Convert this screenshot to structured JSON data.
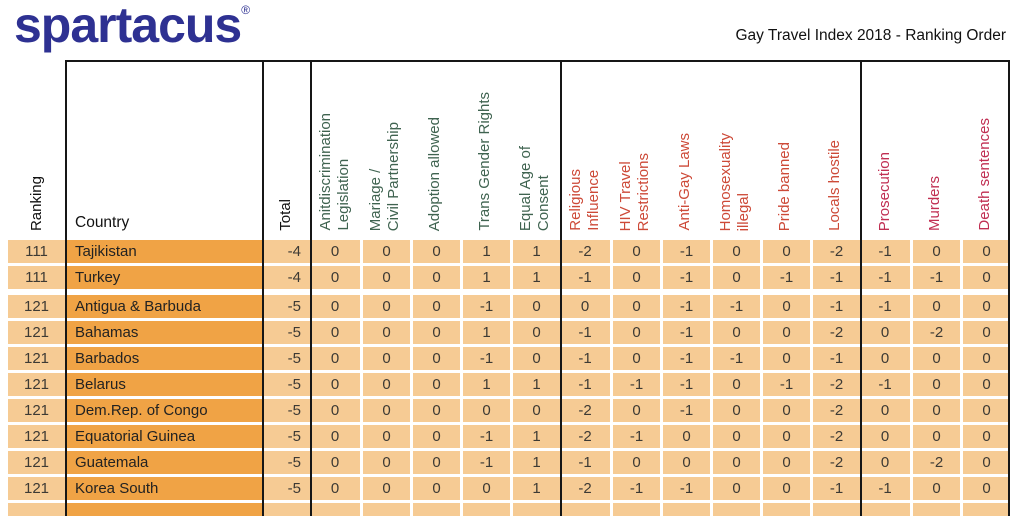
{
  "brand": {
    "logo_text": "spartacus",
    "registered_mark": "®"
  },
  "title": "Gay Travel Index 2018 - Ranking Order",
  "colors": {
    "logo_blue": "#2e3192",
    "positive_header": "#3f6350",
    "negative_header": "#cd4a38",
    "severe_header": "#c02e52",
    "row_light": "#f6cb94",
    "row_dark": "#f0a345",
    "grid_line": "#161616"
  },
  "table": {
    "corner_headers": {
      "ranking": "Ranking",
      "country": "Country",
      "total": "Total"
    },
    "column_groups": [
      {
        "id": "positive",
        "columns": [
          "Anitdiscrimination\nLegislation",
          "Mariage /\nCivil Partnership",
          "Adoption allowed",
          "Trans Gender Rights",
          "Equal Age of\nConsent"
        ]
      },
      {
        "id": "negative",
        "columns": [
          "Religious\nInfluence",
          "HIV Travel\nRestrictions",
          "Anti-Gay Laws",
          "Homosexuality\nillegal",
          "Pride banned",
          "Locals hostile"
        ]
      },
      {
        "id": "severe",
        "columns": [
          "Prosecution",
          "Murders",
          "Death sentences"
        ]
      }
    ],
    "rows": [
      {
        "ranking": "111",
        "country": "Tajikistan",
        "total": "-4",
        "values": [
          "0",
          "0",
          "0",
          "1",
          "1",
          "-2",
          "0",
          "-1",
          "0",
          "0",
          "-2",
          "-1",
          "0",
          "0"
        ]
      },
      {
        "ranking": "111",
        "country": "Turkey",
        "total": "-4",
        "values": [
          "0",
          "0",
          "0",
          "1",
          "1",
          "-1",
          "0",
          "-1",
          "0",
          "-1",
          "-1",
          "-1",
          "-1",
          "0"
        ]
      },
      {
        "ranking": "121",
        "country": "Antigua & Barbuda",
        "total": "-5",
        "values": [
          "0",
          "0",
          "0",
          "-1",
          "0",
          "0",
          "0",
          "-1",
          "-1",
          "0",
          "-1",
          "-1",
          "0",
          "0"
        ]
      },
      {
        "ranking": "121",
        "country": "Bahamas",
        "total": "-5",
        "values": [
          "0",
          "0",
          "0",
          "1",
          "0",
          "-1",
          "0",
          "-1",
          "0",
          "0",
          "-2",
          "0",
          "-2",
          "0"
        ]
      },
      {
        "ranking": "121",
        "country": "Barbados",
        "total": "-5",
        "values": [
          "0",
          "0",
          "0",
          "-1",
          "0",
          "-1",
          "0",
          "-1",
          "-1",
          "0",
          "-1",
          "0",
          "0",
          "0"
        ]
      },
      {
        "ranking": "121",
        "country": "Belarus",
        "total": "-5",
        "values": [
          "0",
          "0",
          "0",
          "1",
          "1",
          "-1",
          "-1",
          "-1",
          "0",
          "-1",
          "-2",
          "-1",
          "0",
          "0"
        ]
      },
      {
        "ranking": "121",
        "country": "Dem.Rep. of Congo",
        "total": "-5",
        "values": [
          "0",
          "0",
          "0",
          "0",
          "0",
          "-2",
          "0",
          "-1",
          "0",
          "0",
          "-2",
          "0",
          "0",
          "0"
        ]
      },
      {
        "ranking": "121",
        "country": "Equatorial Guinea",
        "total": "-5",
        "values": [
          "0",
          "0",
          "0",
          "-1",
          "1",
          "-2",
          "-1",
          "0",
          "0",
          "0",
          "-2",
          "0",
          "0",
          "0"
        ]
      },
      {
        "ranking": "121",
        "country": "Guatemala",
        "total": "-5",
        "values": [
          "0",
          "0",
          "0",
          "-1",
          "1",
          "-1",
          "0",
          "0",
          "0",
          "0",
          "-2",
          "0",
          "-2",
          "0"
        ]
      },
      {
        "ranking": "121",
        "country": "Korea South",
        "total": "-5",
        "values": [
          "0",
          "0",
          "0",
          "0",
          "1",
          "-2",
          "-1",
          "-1",
          "0",
          "0",
          "-1",
          "-1",
          "0",
          "0"
        ]
      }
    ]
  }
}
